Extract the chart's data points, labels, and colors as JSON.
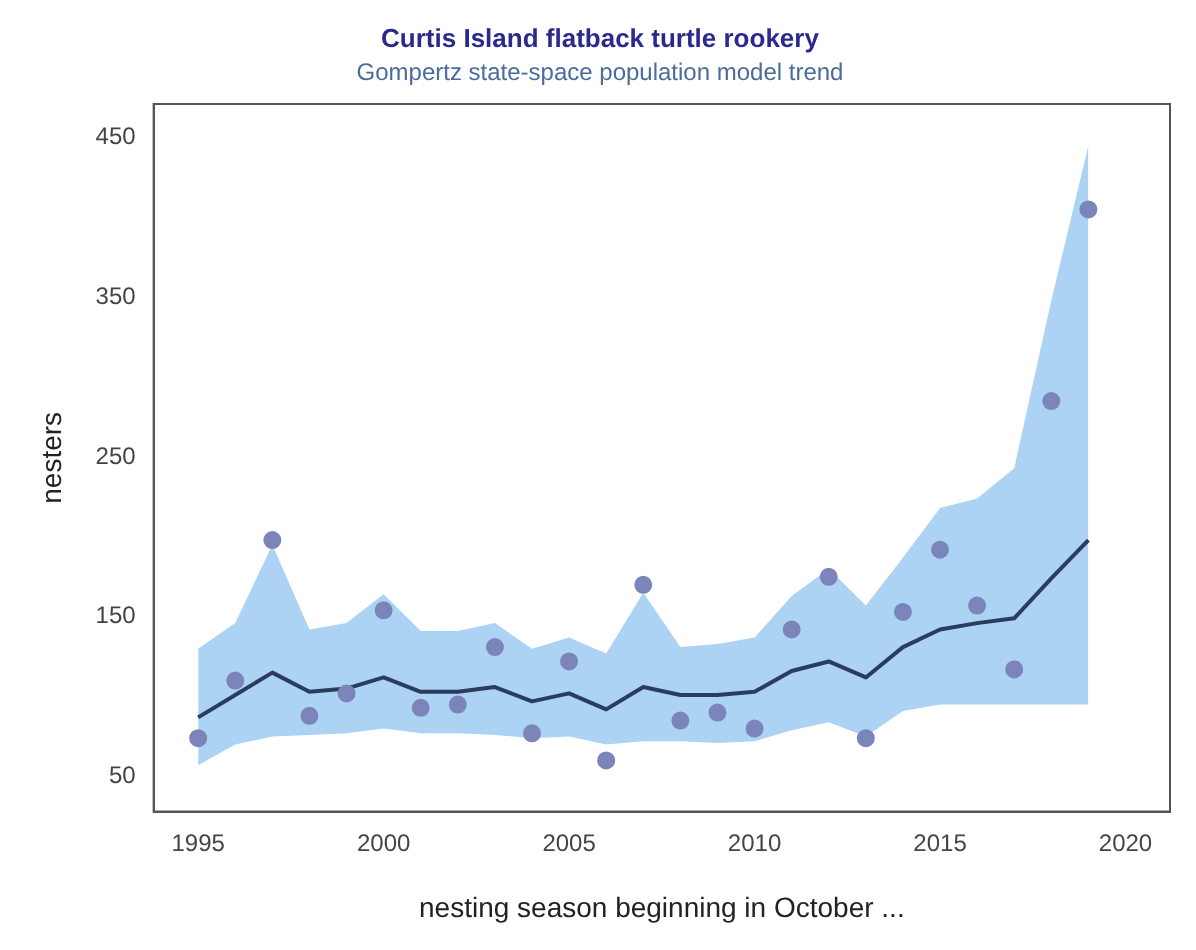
{
  "chart_data": {
    "type": "line",
    "title": "Curtis Island flatback turtle rookery",
    "subtitle": "Gompertz state-space population model trend",
    "xlabel": "nesting season beginning in October ...",
    "ylabel": "nesters",
    "x": [
      1995,
      1996,
      1997,
      1998,
      1999,
      2000,
      2001,
      2002,
      2003,
      2004,
      2005,
      2006,
      2007,
      2008,
      2009,
      2010,
      2011,
      2012,
      2013,
      2014,
      2015,
      2016,
      2017,
      2018,
      2019
    ],
    "series": [
      {
        "type": "line",
        "color": "#2b3d5c",
        "marker": "none",
        "values": [
          87,
          101,
          115,
          103,
          105,
          112,
          103,
          103,
          106,
          97,
          102,
          92,
          106,
          101,
          101,
          103,
          116,
          122,
          112,
          131,
          142,
          146,
          149,
          174,
          198
        ],
        "lower": [
          57,
          70,
          75,
          76,
          77,
          80,
          77,
          77,
          76,
          74,
          75,
          70,
          72,
          72,
          71,
          72,
          79,
          84,
          75,
          91,
          95,
          95,
          95,
          95,
          95
        ],
        "upper": [
          130,
          146,
          195,
          142,
          146,
          164,
          141,
          141,
          146,
          130,
          137,
          127,
          165,
          131,
          133,
          137,
          163,
          180,
          157,
          187,
          218,
          224,
          243,
          348,
          445
        ]
      },
      {
        "type": "scatter",
        "color": "#7b85b9",
        "marker": "circle",
        "values": [
          74,
          110,
          198,
          88,
          102,
          154,
          93,
          95,
          131,
          77,
          122,
          60,
          170,
          85,
          90,
          80,
          142,
          175,
          74,
          153,
          192,
          157,
          117,
          285,
          405
        ]
      }
    ],
    "xlim": [
      1993.8,
      2021.2
    ],
    "xticks": [
      1995,
      2000,
      2005,
      2010,
      2015,
      2020
    ],
    "ylim": [
      28,
      471
    ],
    "yticks": [
      50,
      150,
      250,
      350,
      450
    ],
    "grid": false,
    "legend": false,
    "line_style": "solid"
  }
}
